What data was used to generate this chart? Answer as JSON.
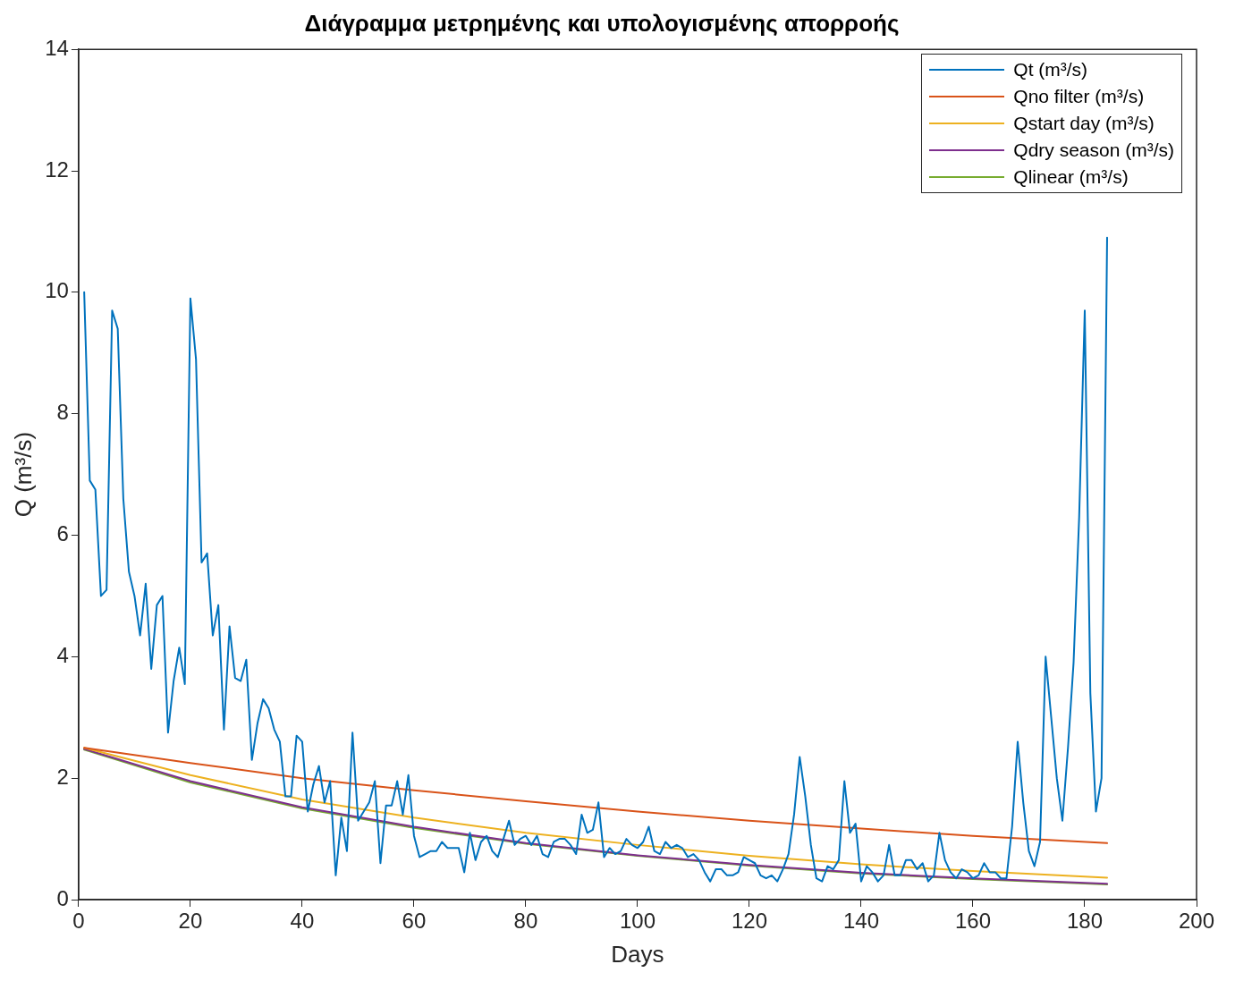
{
  "chart_data": {
    "type": "line",
    "title": "Διάγραμμα μετρημένης και υπολογισμένης απορροής",
    "xlabel": "Days",
    "ylabel": "Q (m³/s)",
    "xlim": [
      0,
      200
    ],
    "xticks": [
      0,
      20,
      40,
      60,
      80,
      100,
      120,
      140,
      160,
      180,
      200
    ],
    "ylim": [
      0,
      14
    ],
    "yticks": [
      0,
      2,
      4,
      6,
      8,
      10,
      12,
      14
    ],
    "grid": false,
    "legend": "top right",
    "marker": "none",
    "line_style": "solid",
    "series": [
      {
        "name": "Qt (m³/s)",
        "color": "#0072bd",
        "x": [
          1,
          2,
          3,
          4,
          5,
          6,
          7,
          8,
          9,
          10,
          11,
          12,
          13,
          14,
          15,
          16,
          17,
          18,
          19,
          20,
          21,
          22,
          23,
          24,
          25,
          26,
          27,
          28,
          29,
          30,
          31,
          32,
          33,
          34,
          35,
          36,
          37,
          38,
          39,
          40,
          41,
          42,
          43,
          44,
          45,
          46,
          47,
          48,
          49,
          50,
          51,
          52,
          53,
          54,
          55,
          56,
          57,
          58,
          59,
          60,
          61,
          62,
          63,
          64,
          65,
          66,
          67,
          68,
          69,
          70,
          71,
          72,
          73,
          74,
          75,
          76,
          77,
          78,
          79,
          80,
          81,
          82,
          83,
          84,
          85,
          86,
          87,
          88,
          89,
          90,
          91,
          92,
          93,
          94,
          95,
          96,
          97,
          98,
          99,
          100,
          101,
          102,
          103,
          104,
          105,
          106,
          107,
          108,
          109,
          110,
          111,
          112,
          113,
          114,
          115,
          116,
          117,
          118,
          119,
          120,
          121,
          122,
          123,
          124,
          125,
          126,
          127,
          128,
          129,
          130,
          131,
          132,
          133,
          134,
          135,
          136,
          137,
          138,
          139,
          140,
          141,
          142,
          143,
          144,
          145,
          146,
          147,
          148,
          149,
          150,
          151,
          152,
          153,
          154,
          155,
          156,
          157,
          158,
          159,
          160,
          161,
          162,
          163,
          164,
          165,
          166,
          167,
          168,
          169,
          170,
          171,
          172,
          173,
          174,
          175,
          176,
          177,
          178,
          179,
          180,
          181,
          182,
          183,
          184
        ],
        "values": [
          10.0,
          6.9,
          6.75,
          5.0,
          5.1,
          9.7,
          9.4,
          6.6,
          5.4,
          5.0,
          4.35,
          5.2,
          3.8,
          4.85,
          5.0,
          2.75,
          3.6,
          4.15,
          3.55,
          9.9,
          8.9,
          5.55,
          5.7,
          4.35,
          4.85,
          2.8,
          4.5,
          3.65,
          3.6,
          3.95,
          2.3,
          2.9,
          3.3,
          3.15,
          2.8,
          2.6,
          1.7,
          1.7,
          2.7,
          2.6,
          1.45,
          1.9,
          2.2,
          1.6,
          1.95,
          0.4,
          1.35,
          0.8,
          2.75,
          1.3,
          1.45,
          1.6,
          1.95,
          0.6,
          1.55,
          1.55,
          1.95,
          1.4,
          2.05,
          1.05,
          0.7,
          0.75,
          0.8,
          0.8,
          0.95,
          0.85,
          0.85,
          0.85,
          0.45,
          1.1,
          0.65,
          0.95,
          1.05,
          0.8,
          0.7,
          1.0,
          1.3,
          0.9,
          1.0,
          1.05,
          0.9,
          1.05,
          0.75,
          0.7,
          0.95,
          1.0,
          1.0,
          0.9,
          0.75,
          1.4,
          1.1,
          1.15,
          1.6,
          0.7,
          0.85,
          0.75,
          0.8,
          1.0,
          0.9,
          0.85,
          0.95,
          1.2,
          0.8,
          0.75,
          0.95,
          0.85,
          0.9,
          0.85,
          0.7,
          0.75,
          0.65,
          0.45,
          0.3,
          0.5,
          0.5,
          0.4,
          0.4,
          0.45,
          0.7,
          0.65,
          0.6,
          0.4,
          0.35,
          0.4,
          0.3,
          0.5,
          0.75,
          1.4,
          2.35,
          1.7,
          0.9,
          0.35,
          0.3,
          0.55,
          0.5,
          0.65,
          1.95,
          1.1,
          1.25,
          0.3,
          0.55,
          0.45,
          0.3,
          0.4,
          0.9,
          0.4,
          0.4,
          0.65,
          0.65,
          0.5,
          0.6,
          0.3,
          0.4,
          1.1,
          0.65,
          0.45,
          0.35,
          0.5,
          0.45,
          0.35,
          0.4,
          0.6,
          0.45,
          0.45,
          0.35,
          0.35,
          1.2,
          2.6,
          1.6,
          0.8,
          0.55,
          0.95,
          4.0,
          3.0,
          2.0,
          1.3,
          2.5,
          3.9,
          6.3,
          9.7,
          3.4,
          1.45,
          2.0,
          10.9
        ]
      },
      {
        "name": "Qno filter (m³/s)",
        "color": "#d95319",
        "x": [
          1,
          20,
          40,
          60,
          80,
          100,
          120,
          140,
          160,
          184
        ],
        "values": [
          2.5,
          2.25,
          2.0,
          1.8,
          1.62,
          1.45,
          1.3,
          1.17,
          1.05,
          0.93
        ]
      },
      {
        "name": "Qstart day (m³/s)",
        "color": "#edb120",
        "x": [
          1,
          20,
          40,
          60,
          80,
          100,
          120,
          140,
          160,
          184
        ],
        "values": [
          2.5,
          2.05,
          1.65,
          1.35,
          1.1,
          0.9,
          0.72,
          0.58,
          0.47,
          0.36
        ]
      },
      {
        "name": "Qdry season (m³/s)",
        "color": "#7e2f8e",
        "x": [
          1,
          20,
          40,
          60,
          80,
          100,
          120,
          140,
          160,
          184
        ],
        "values": [
          2.48,
          1.95,
          1.52,
          1.2,
          0.93,
          0.73,
          0.57,
          0.44,
          0.35,
          0.26
        ]
      },
      {
        "name": "Qlinear (m³/s)",
        "color": "#77ac30",
        "x": [
          1,
          20,
          40,
          60,
          80,
          100,
          120,
          140,
          160,
          184
        ],
        "values": [
          2.47,
          1.93,
          1.5,
          1.18,
          0.92,
          0.72,
          0.56,
          0.43,
          0.34,
          0.25
        ]
      }
    ]
  }
}
